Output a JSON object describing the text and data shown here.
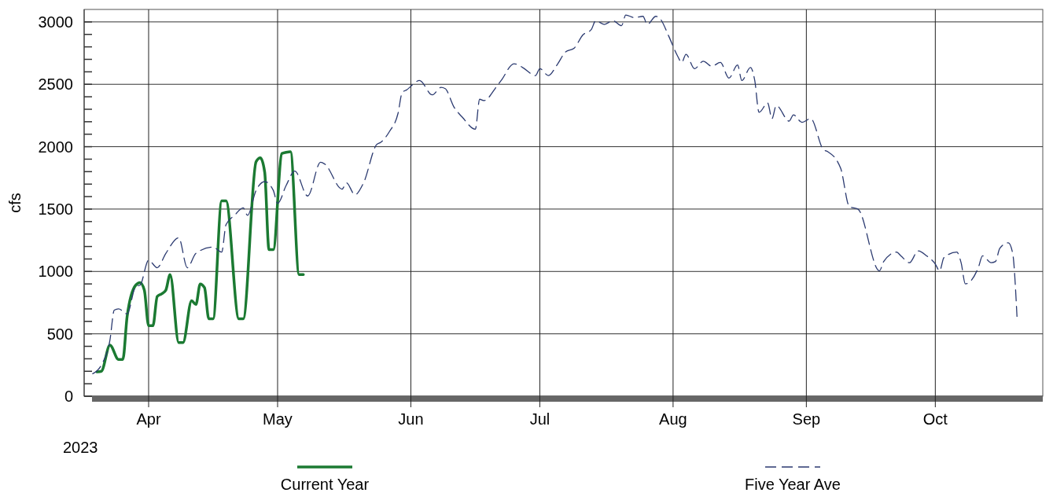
{
  "chart_data": {
    "type": "line",
    "ylabel": "cfs",
    "annotations": [
      "2023"
    ],
    "xlim": [
      "2023-03-17",
      "2023-10-26"
    ],
    "xticks": [
      {
        "value": "2023-04-01",
        "label": "Apr"
      },
      {
        "value": "2023-05-01",
        "label": "May"
      },
      {
        "value": "2023-06-01",
        "label": "Jun"
      },
      {
        "value": "2023-07-01",
        "label": "Jul"
      },
      {
        "value": "2023-08-01",
        "label": "Aug"
      },
      {
        "value": "2023-09-01",
        "label": "Sep"
      },
      {
        "value": "2023-10-01",
        "label": "Oct"
      }
    ],
    "ylim": [
      0,
      3100
    ],
    "yticks": [
      0,
      {
        "value": 100,
        "label": null
      },
      {
        "value": 200,
        "label": null
      },
      {
        "value": 300,
        "label": null
      },
      {
        "value": 400,
        "label": null
      },
      500,
      {
        "value": 600,
        "label": null
      },
      {
        "value": 700,
        "label": null
      },
      {
        "value": 800,
        "label": null
      },
      {
        "value": 900,
        "label": null
      },
      1000,
      {
        "value": 1100,
        "label": null
      },
      {
        "value": 1200,
        "label": null
      },
      {
        "value": 1300,
        "label": null
      },
      {
        "value": 1400,
        "label": null
      },
      1500,
      {
        "value": 1600,
        "label": null
      },
      {
        "value": 1700,
        "label": null
      },
      {
        "value": 1800,
        "label": null
      },
      {
        "value": 1900,
        "label": null
      },
      2000,
      {
        "value": 2100,
        "label": null
      },
      {
        "value": 2200,
        "label": null
      },
      {
        "value": 2300,
        "label": null
      },
      {
        "value": 2400,
        "label": null
      },
      2500,
      {
        "value": 2600,
        "label": null
      },
      {
        "value": 2700,
        "label": null
      },
      {
        "value": 2800,
        "label": null
      },
      {
        "value": 2900,
        "label": null
      },
      3000
    ],
    "grid": true,
    "legend": "bottom",
    "series": [
      {
        "name": "Current Year",
        "color": "#1b7a32",
        "line_style": "solid",
        "x": [
          "2023-03-20",
          "2023-03-21",
          "2023-03-23",
          "2023-03-25",
          "2023-03-26",
          "2023-03-27",
          "2023-03-29",
          "2023-03-30",
          "2023-03-31",
          "2023-04-01",
          "2023-04-02",
          "2023-04-03",
          "2023-04-04",
          "2023-04-05",
          "2023-04-06",
          "2023-04-08",
          "2023-04-09",
          "2023-04-11",
          "2023-04-12",
          "2023-04-13",
          "2023-04-14",
          "2023-04-15",
          "2023-04-16",
          "2023-04-18",
          "2023-04-19",
          "2023-04-22",
          "2023-04-23",
          "2023-04-26",
          "2023-04-27",
          "2023-04-28",
          "2023-04-29",
          "2023-04-30",
          "2023-05-02",
          "2023-05-03",
          "2023-05-04",
          "2023-05-06",
          "2023-05-07"
        ],
        "values": [
          195,
          200,
          410,
          295,
          295,
          640,
          890,
          910,
          850,
          565,
          565,
          800,
          820,
          850,
          975,
          430,
          430,
          765,
          735,
          900,
          870,
          620,
          620,
          1565,
          1565,
          620,
          620,
          1880,
          1910,
          1795,
          1175,
          1175,
          1945,
          1955,
          1960,
          975,
          975
        ]
      },
      {
        "name": "Five Year Ave",
        "color": "#2b3a70",
        "line_style": "dashed",
        "x": [
          "2023-03-19",
          "2023-03-21",
          "2023-03-23",
          "2023-03-24",
          "2023-03-25",
          "2023-03-27",
          "2023-03-29",
          "2023-03-30",
          "2023-04-01",
          "2023-04-03",
          "2023-04-05",
          "2023-04-08",
          "2023-04-10",
          "2023-04-12",
          "2023-04-16",
          "2023-04-18",
          "2023-04-19",
          "2023-04-21",
          "2023-04-23",
          "2023-04-24",
          "2023-04-26",
          "2023-04-28",
          "2023-04-30",
          "2023-05-01",
          "2023-05-03",
          "2023-05-05",
          "2023-05-08",
          "2023-05-11",
          "2023-05-12",
          "2023-05-16",
          "2023-05-17",
          "2023-05-19",
          "2023-05-21",
          "2023-05-24",
          "2023-05-25",
          "2023-05-27",
          "2023-05-29",
          "2023-05-30",
          "2023-05-31",
          "2023-06-03",
          "2023-06-06",
          "2023-06-08",
          "2023-06-09",
          "2023-06-11",
          "2023-06-13",
          "2023-06-16",
          "2023-06-17",
          "2023-06-18",
          "2023-06-21",
          "2023-06-22",
          "2023-06-25",
          "2023-06-27",
          "2023-06-30",
          "2023-07-01",
          "2023-07-03",
          "2023-07-05",
          "2023-07-07",
          "2023-07-09",
          "2023-07-11",
          "2023-07-13",
          "2023-07-14",
          "2023-07-16",
          "2023-07-18",
          "2023-07-20",
          "2023-07-21",
          "2023-07-23",
          "2023-07-25",
          "2023-07-26",
          "2023-07-28",
          "2023-07-29",
          "2023-07-31",
          "2023-08-02",
          "2023-08-03",
          "2023-08-04",
          "2023-08-06",
          "2023-08-08",
          "2023-08-10",
          "2023-08-12",
          "2023-08-14",
          "2023-08-16",
          "2023-08-17",
          "2023-08-19",
          "2023-08-20",
          "2023-08-21",
          "2023-08-23",
          "2023-08-24",
          "2023-08-25",
          "2023-08-28",
          "2023-08-29",
          "2023-08-31",
          "2023-09-02",
          "2023-09-05",
          "2023-09-06",
          "2023-09-09",
          "2023-09-11",
          "2023-09-13",
          "2023-09-18",
          "2023-09-19",
          "2023-09-22",
          "2023-09-23",
          "2023-09-25",
          "2023-09-27",
          "2023-09-29",
          "2023-10-01",
          "2023-10-02",
          "2023-10-03",
          "2023-10-06",
          "2023-10-07",
          "2023-10-08",
          "2023-10-11",
          "2023-10-12",
          "2023-10-14",
          "2023-10-15",
          "2023-10-16",
          "2023-10-18",
          "2023-10-19",
          "2023-10-20"
        ],
        "values": [
          180,
          250,
          450,
          690,
          700,
          660,
          880,
          890,
          1090,
          1030,
          1145,
          1270,
          1030,
          1145,
          1195,
          1155,
          1375,
          1450,
          1510,
          1450,
          1650,
          1720,
          1650,
          1545,
          1690,
          1805,
          1605,
          1875,
          1860,
          1660,
          1710,
          1615,
          1710,
          2015,
          2035,
          2120,
          2265,
          2435,
          2455,
          2530,
          2415,
          2475,
          2465,
          2320,
          2235,
          2140,
          2380,
          2370,
          2485,
          2530,
          2665,
          2635,
          2570,
          2625,
          2570,
          2655,
          2760,
          2790,
          2895,
          2940,
          3010,
          2980,
          3010,
          2970,
          3055,
          3035,
          3045,
          2980,
          3045,
          3025,
          2885,
          2730,
          2675,
          2740,
          2625,
          2685,
          2645,
          2675,
          2550,
          2655,
          2530,
          2635,
          2530,
          2275,
          2350,
          2225,
          2330,
          2205,
          2255,
          2195,
          2225,
          1975,
          1960,
          1825,
          1520,
          1500,
          1005,
          1080,
          1155,
          1125,
          1070,
          1165,
          1125,
          1060,
          1005,
          1110,
          1155,
          1070,
          900,
          1030,
          1125,
          1070,
          1080,
          1185,
          1230,
          1145,
          640
        ]
      }
    ]
  }
}
